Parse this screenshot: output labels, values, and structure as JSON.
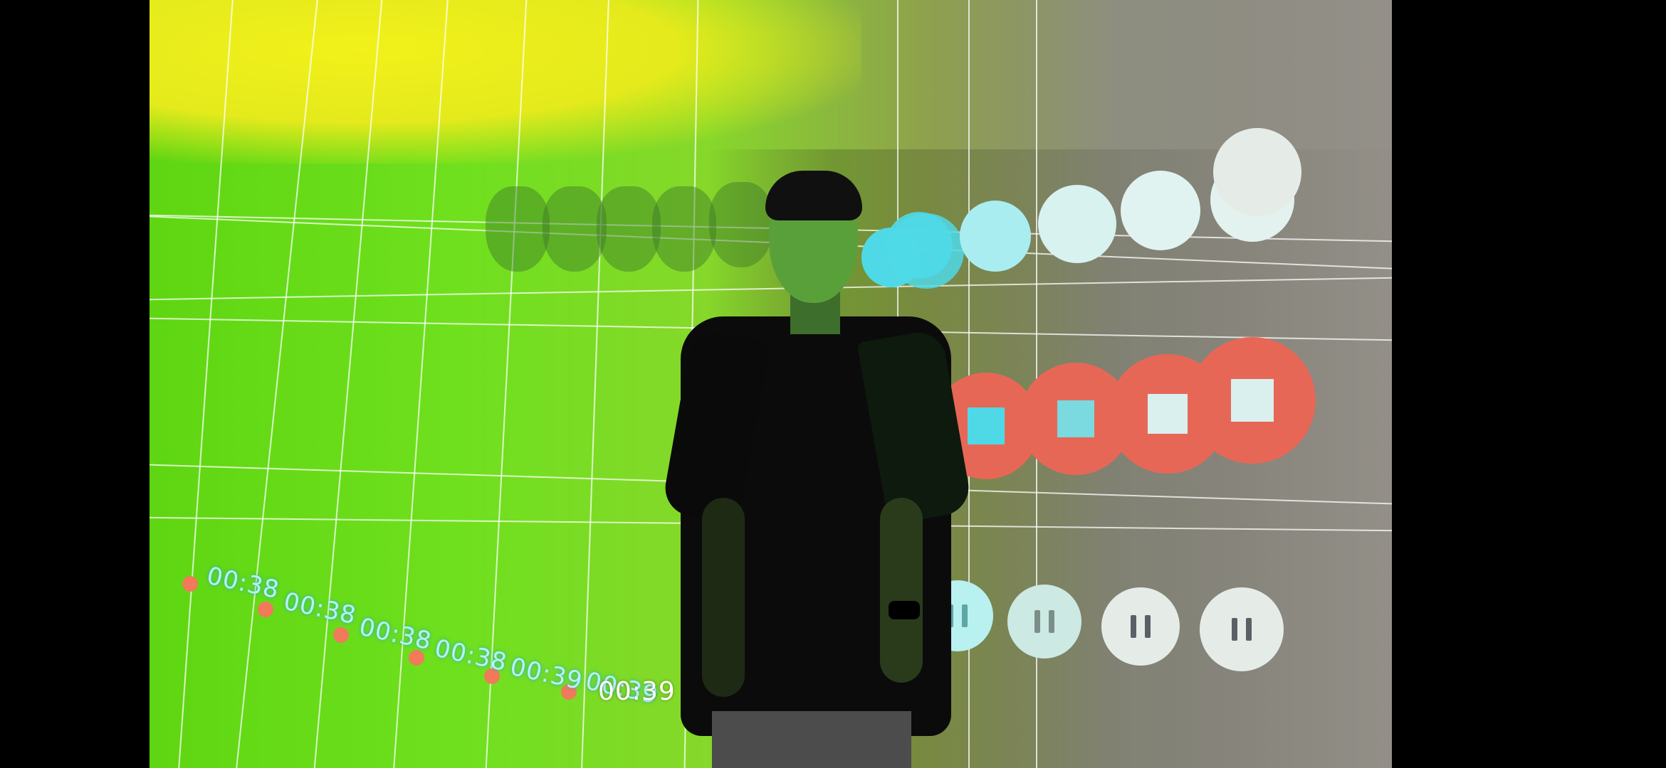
{
  "video_player": {
    "timestamps": [
      "00:38",
      "00:38",
      "00:38",
      "00:38",
      "00:39",
      "00:39"
    ],
    "current_time": "00:39",
    "handle_icon": "handle-icon",
    "collapse_icon": "chevron-left-icon",
    "colors": {
      "record": "#e76757",
      "stop_square": "#d9f0ee",
      "pause_button": "#e5ece8",
      "light_circle": "#d7f2ef",
      "cyan_circle": "#4fd9e7"
    }
  }
}
